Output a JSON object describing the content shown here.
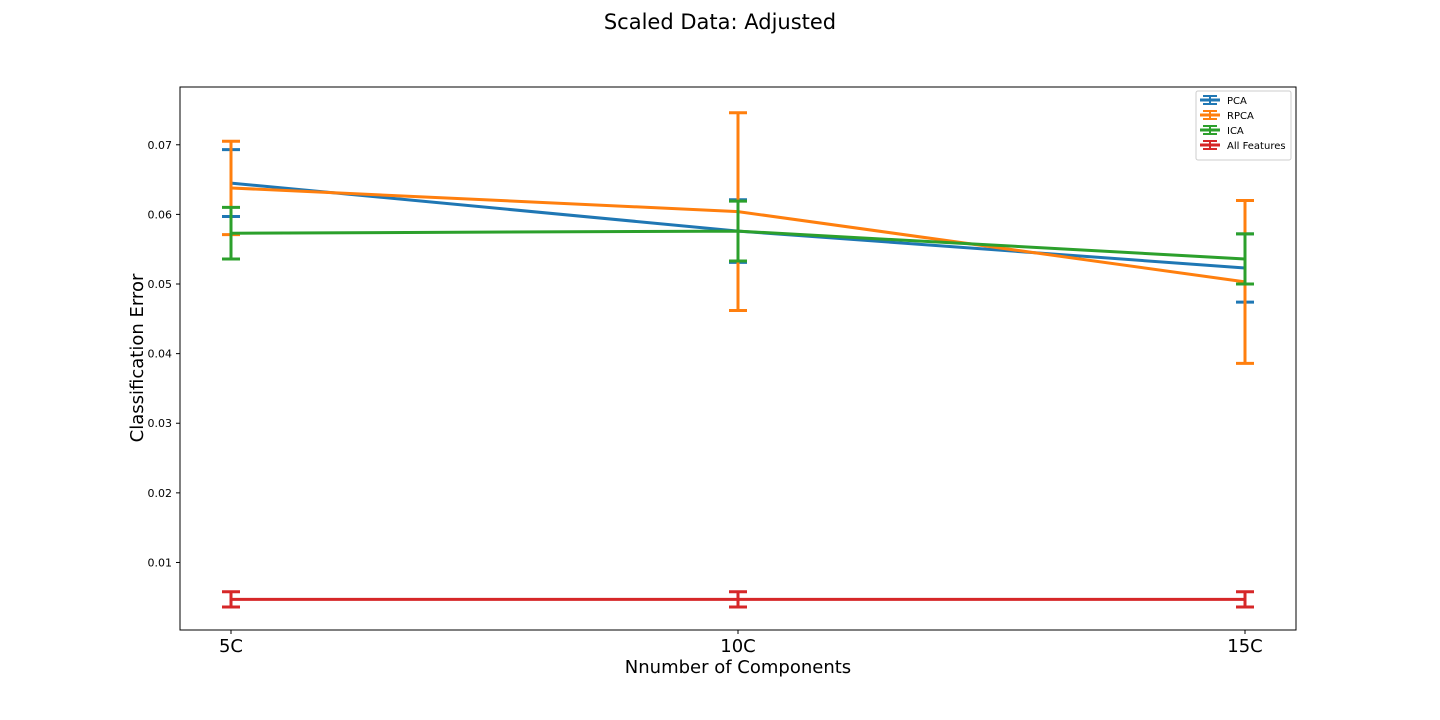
{
  "chart_data": {
    "type": "line",
    "title": "Scaled Data: Adjusted",
    "xlabel": "Nnumber of Components",
    "ylabel": "Classification Error",
    "categories": [
      "5C",
      "10C",
      "15C"
    ],
    "ylim": [
      0.0003,
      0.0783
    ],
    "yticks": [
      0.01,
      0.02,
      0.03,
      0.04,
      0.05,
      0.06,
      0.07
    ],
    "ytick_labels": [
      "0.01",
      "0.02",
      "0.03",
      "0.04",
      "0.05",
      "0.06",
      "0.07"
    ],
    "grid": false,
    "legend_position": "top-right",
    "error_bars": true,
    "series": [
      {
        "name": "PCA",
        "color": "#1f77b4",
        "values": [
          0.0645,
          0.0576,
          0.0523
        ],
        "errors": [
          0.0048,
          0.0045,
          0.0049
        ]
      },
      {
        "name": "RPCA",
        "color": "#ff7f0e",
        "values": [
          0.0638,
          0.0604,
          0.0503
        ],
        "errors": [
          0.0067,
          0.0142,
          0.0117
        ]
      },
      {
        "name": "ICA",
        "color": "#2ca02c",
        "values": [
          0.0573,
          0.0576,
          0.0536
        ],
        "errors": [
          0.0037,
          0.0043,
          0.0036
        ]
      },
      {
        "name": "All Features",
        "color": "#d62728",
        "values": [
          0.0047,
          0.0047,
          0.0047
        ],
        "errors": [
          0.0011,
          0.0011,
          0.0011
        ]
      }
    ]
  }
}
